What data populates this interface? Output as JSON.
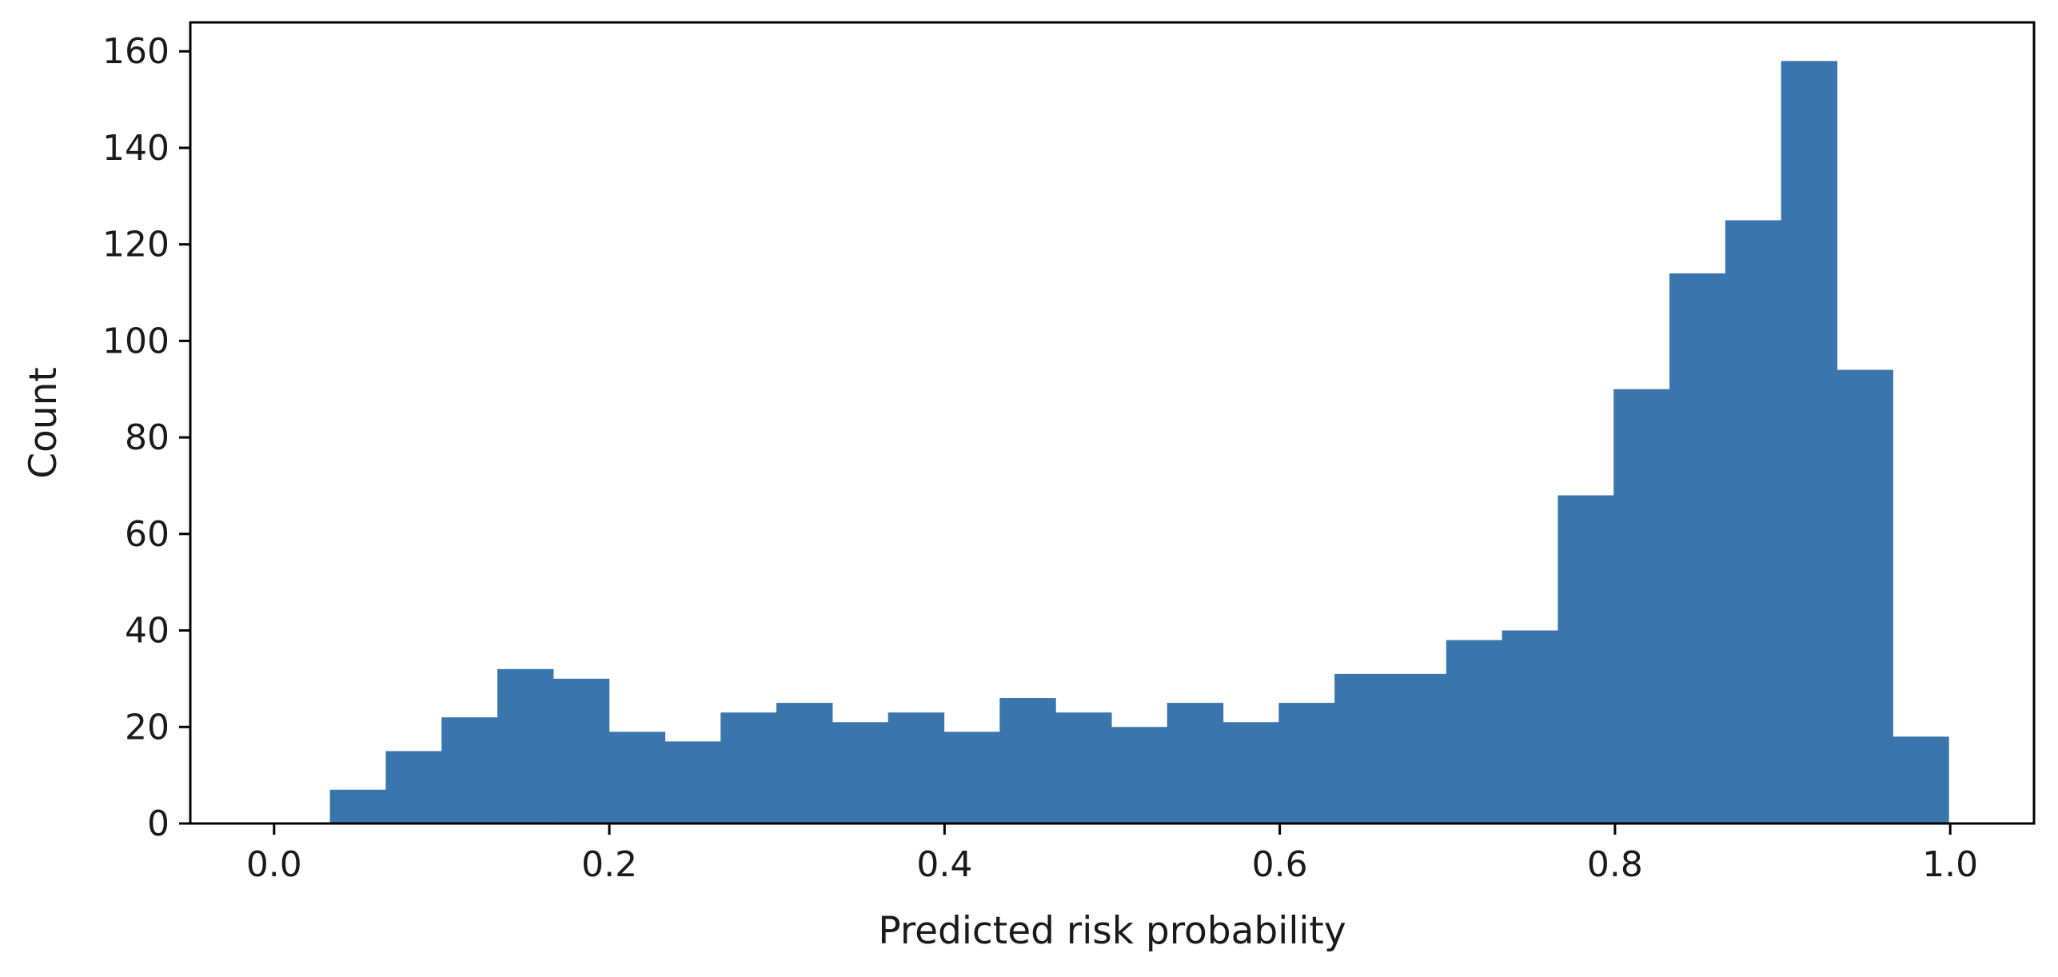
{
  "chart_data": {
    "type": "bar",
    "subtype": "histogram",
    "title": "",
    "xlabel": "Predicted risk probability",
    "ylabel": "Count",
    "xlim": [
      -0.05,
      1.05
    ],
    "ylim": [
      0,
      166
    ],
    "x_ticks": [
      0.0,
      0.2,
      0.4,
      0.6,
      0.8,
      1.0
    ],
    "x_tick_labels": [
      "0.0",
      "0.2",
      "0.4",
      "0.6",
      "0.8",
      "1.0"
    ],
    "y_ticks": [
      0,
      20,
      40,
      60,
      80,
      100,
      120,
      140,
      160
    ],
    "y_tick_labels": [
      "0",
      "20",
      "40",
      "60",
      "80",
      "100",
      "120",
      "140",
      "160"
    ],
    "bin_start": 0.0,
    "bin_width": 0.0333,
    "values": [
      0,
      7,
      15,
      22,
      32,
      30,
      19,
      17,
      23,
      25,
      21,
      23,
      19,
      26,
      23,
      20,
      25,
      21,
      25,
      31,
      31,
      38,
      40,
      68,
      90,
      114,
      125,
      158,
      94,
      18
    ],
    "bar_color": "#3b75ad",
    "grid": false,
    "legend": false
  }
}
